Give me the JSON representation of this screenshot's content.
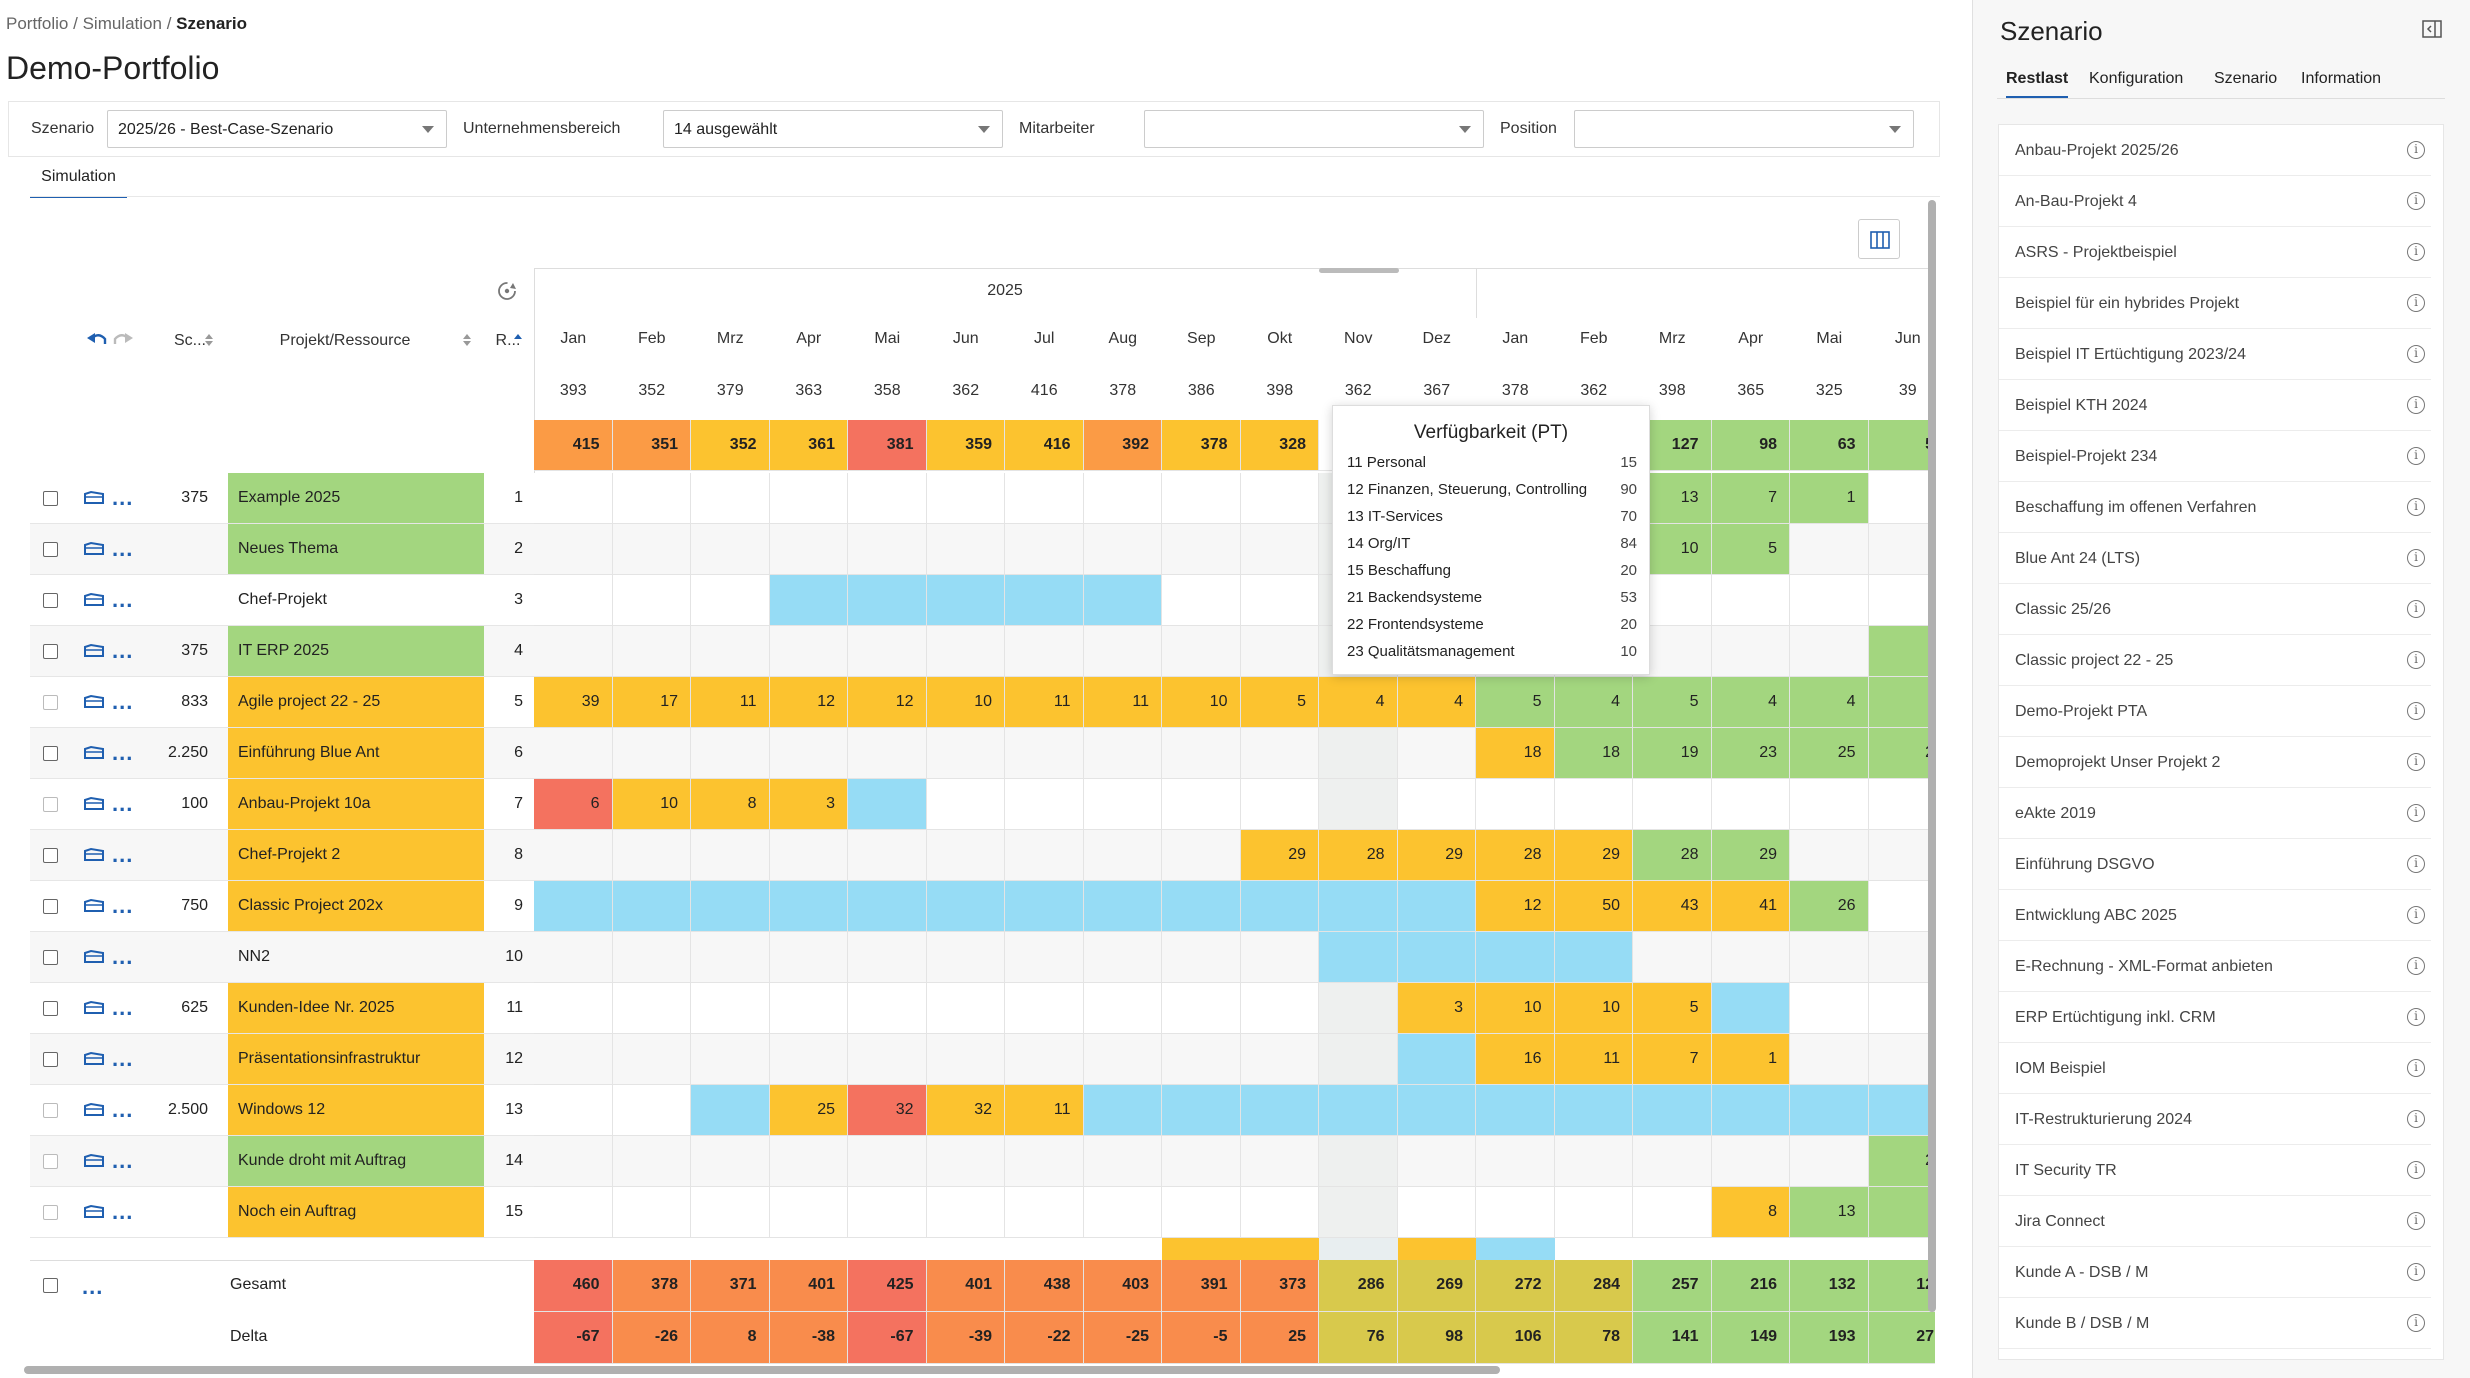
{
  "breadcrumb": {
    "items": [
      "Portfolio",
      "Simulation"
    ],
    "current": "Szenario",
    "separator": "/"
  },
  "page_title": "Demo-Portfolio",
  "filters": {
    "scenario_label": "Szenario",
    "scenario_value": "2025/26 - Best-Case-Szenario",
    "unit_label": "Unternehmensbereich",
    "unit_value": "14 ausgewählt",
    "employee_label": "Mitarbeiter",
    "employee_value": "",
    "position_label": "Position",
    "position_value": ""
  },
  "tab_simulation": "Simulation",
  "grid": {
    "year_left": "2025",
    "headers": {
      "sc": "Sc...",
      "project": "Projekt/Ressource",
      "rank": "R..."
    },
    "months": [
      "Jan",
      "Feb",
      "Mrz",
      "Apr",
      "Mai",
      "Jun",
      "Jul",
      "Aug",
      "Sep",
      "Okt",
      "Nov",
      "Dez",
      "Jan",
      "Feb",
      "Mrz",
      "Apr",
      "Mai",
      "Jun"
    ],
    "capacity": [
      "393",
      "352",
      "379",
      "363",
      "358",
      "362",
      "416",
      "378",
      "386",
      "398",
      "362",
      "367",
      "378",
      "362",
      "398",
      "365",
      "325",
      "39"
    ],
    "remaining": [
      "415",
      "351",
      "352",
      "361",
      "381",
      "359",
      "416",
      "392",
      "378",
      "328",
      "",
      "",
      "",
      "",
      "127",
      "98",
      "63",
      "5"
    ],
    "rows": [
      {
        "sc": "375",
        "name": "Example 2025",
        "rank": "1",
        "vals": [
          "",
          "",
          "",
          "",
          "",
          "",
          "",
          "",
          "",
          "",
          "",
          "",
          "",
          "",
          "13",
          "7",
          "1",
          ""
        ]
      },
      {
        "sc": "",
        "name": "Neues Thema",
        "rank": "2",
        "vals": [
          "",
          "",
          "",
          "",
          "",
          "",
          "",
          "",
          "",
          "",
          "",
          "",
          "",
          "",
          "10",
          "5",
          "",
          ""
        ]
      },
      {
        "sc": "",
        "name": "Chef-Projekt",
        "rank": "3",
        "vals": [
          "",
          "",
          "",
          "",
          "",
          "",
          "",
          "",
          "",
          "",
          "",
          "",
          "",
          "",
          "",
          "",
          "",
          ""
        ]
      },
      {
        "sc": "375",
        "name": "IT ERP 2025",
        "rank": "4",
        "vals": [
          "",
          "",
          "",
          "",
          "",
          "",
          "",
          "",
          "",
          "",
          "",
          "",
          "",
          "",
          "",
          "",
          "",
          ""
        ]
      },
      {
        "sc": "833",
        "name": "Agile project 22 - 25",
        "rank": "5",
        "vals": [
          "39",
          "17",
          "11",
          "12",
          "12",
          "10",
          "11",
          "11",
          "10",
          "5",
          "4",
          "4",
          "5",
          "4",
          "5",
          "4",
          "4",
          ""
        ]
      },
      {
        "sc": "2.250",
        "name": "Einführung Blue Ant",
        "rank": "6",
        "vals": [
          "",
          "",
          "",
          "",
          "",
          "",
          "",
          "",
          "",
          "",
          "",
          "",
          "18",
          "18",
          "19",
          "23",
          "25",
          "2"
        ]
      },
      {
        "sc": "100",
        "name": "Anbau-Projekt 10a",
        "rank": "7",
        "vals": [
          "6",
          "10",
          "8",
          "3",
          "",
          "",
          "",
          "",
          "",
          "",
          "",
          "",
          "",
          "",
          "",
          "",
          "",
          ""
        ]
      },
      {
        "sc": "",
        "name": "Chef-Projekt 2",
        "rank": "8",
        "vals": [
          "",
          "",
          "",
          "",
          "",
          "",
          "",
          "",
          "",
          "29",
          "28",
          "29",
          "28",
          "29",
          "28",
          "29",
          "",
          ""
        ]
      },
      {
        "sc": "750",
        "name": "Classic Project 202x",
        "rank": "9",
        "vals": [
          "",
          "",
          "",
          "",
          "",
          "",
          "",
          "",
          "",
          "",
          "",
          "",
          "12",
          "50",
          "43",
          "41",
          "26",
          ""
        ]
      },
      {
        "sc": "",
        "name": "NN2",
        "rank": "10",
        "vals": [
          "",
          "",
          "",
          "",
          "",
          "",
          "",
          "",
          "",
          "",
          "",
          "",
          "",
          "",
          "",
          "",
          "",
          ""
        ]
      },
      {
        "sc": "625",
        "name": "Kunden-Idee Nr. 2025",
        "rank": "11",
        "vals": [
          "",
          "",
          "",
          "",
          "",
          "",
          "",
          "",
          "",
          "",
          "",
          "3",
          "10",
          "10",
          "5",
          "",
          "",
          ""
        ]
      },
      {
        "sc": "",
        "name": "Präsentationsinfrastruktur",
        "rank": "12",
        "vals": [
          "",
          "",
          "",
          "",
          "",
          "",
          "",
          "",
          "",
          "",
          "",
          "",
          "16",
          "11",
          "7",
          "1",
          "",
          ""
        ]
      },
      {
        "sc": "2.500",
        "name": "Windows 12",
        "rank": "13",
        "vals": [
          "",
          "",
          "",
          "25",
          "32",
          "32",
          "11",
          "",
          "",
          "",
          "",
          "",
          "",
          "",
          "",
          "",
          "",
          ""
        ]
      },
      {
        "sc": "",
        "name": "Kunde droht mit Auftrag",
        "rank": "14",
        "vals": [
          "",
          "",
          "",
          "",
          "",
          "",
          "",
          "",
          "",
          "",
          "",
          "",
          "",
          "",
          "",
          "",
          "",
          "2"
        ]
      },
      {
        "sc": "",
        "name": "Noch ein Auftrag",
        "rank": "15",
        "vals": [
          "",
          "",
          "",
          "",
          "",
          "",
          "",
          "",
          "",
          "",
          "",
          "",
          "",
          "",
          "",
          "8",
          "13",
          ""
        ]
      }
    ],
    "total_label": "Gesamt",
    "total": [
      "460",
      "378",
      "371",
      "401",
      "425",
      "401",
      "438",
      "403",
      "391",
      "373",
      "286",
      "269",
      "272",
      "284",
      "257",
      "216",
      "132",
      "12"
    ],
    "delta_label": "Delta",
    "delta": [
      "-67",
      "-26",
      "8",
      "-38",
      "-67",
      "-39",
      "-22",
      "-25",
      "-5",
      "25",
      "76",
      "98",
      "106",
      "78",
      "141",
      "149",
      "193",
      "27"
    ]
  },
  "tooltip": {
    "title": "Verfügbarkeit (PT)",
    "rows": [
      {
        "label": "11 Personal",
        "value": "15"
      },
      {
        "label": "12 Finanzen, Steuerung, Controlling",
        "value": "90"
      },
      {
        "label": "13 IT-Services",
        "value": "70"
      },
      {
        "label": "14 Org/IT",
        "value": "84"
      },
      {
        "label": "15 Beschaffung",
        "value": "20"
      },
      {
        "label": "21 Backendsysteme",
        "value": "53"
      },
      {
        "label": "22 Frontendsysteme",
        "value": "20"
      },
      {
        "label": "23 Qualitätsmanagement",
        "value": "10"
      }
    ]
  },
  "side_panel": {
    "title": "Szenario",
    "tabs": [
      "Restlast",
      "Konfiguration",
      "Szenario",
      "Information"
    ],
    "items": [
      "Anbau-Projekt 2025/26",
      "An-Bau-Projekt 4",
      "ASRS - Projektbeispiel",
      "Beispiel für ein hybrides Projekt",
      "Beispiel IT Ertüchtigung 2023/24",
      "Beispiel KTH 2024",
      "Beispiel-Projekt 234",
      "Beschaffung im offenen Verfahren",
      "Blue Ant 24 (LTS)",
      "Classic 25/26",
      "Classic project 22 - 25",
      "Demo-Projekt PTA",
      "Demoprojekt Unser Projekt 2",
      "eAkte 2019",
      "Einführung DSGVO",
      "Entwicklung ABC 2025",
      "E-Rechnung - XML-Format anbieten",
      "ERP Ertüchtigung inkl. CRM",
      "IOM Beispiel",
      "IT-Restrukturierung 2024",
      "IT Security TR",
      "Jira Connect",
      "Kunde A - DSB / M",
      "Kunde B / DSB / M"
    ]
  },
  "colors": {
    "accent": "#1f5fb0",
    "green": "#a3d67f",
    "yellow": "#fcc32f",
    "orange": "#fb9b45",
    "red": "#f4725f",
    "blue": "#96dcf5"
  }
}
